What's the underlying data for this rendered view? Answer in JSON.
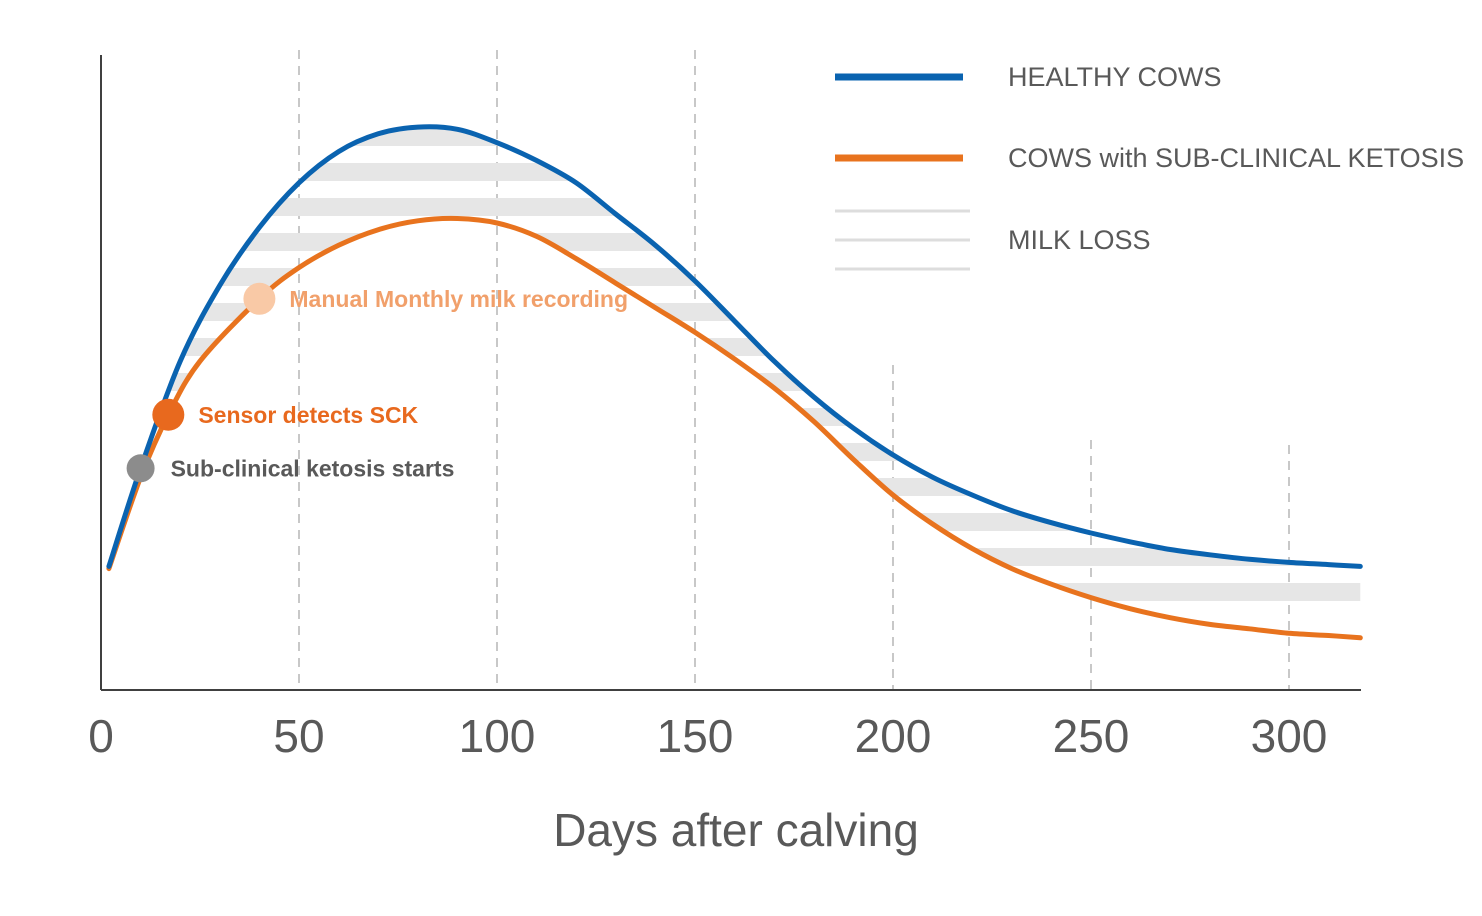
{
  "chart_data": {
    "type": "line",
    "title": "",
    "xlabel": "Days after calving",
    "ylabel": "",
    "xlim": [
      0,
      318
    ],
    "x_ticks": [
      "0",
      "50",
      "100",
      "150",
      "200",
      "250",
      "300"
    ],
    "grid": "vertical dashed at x tick positions",
    "legend_position": "top-right",
    "legend": [
      {
        "key": "healthy",
        "label": "HEALTHY COWS",
        "swatch": "line",
        "color": "#0a63b0"
      },
      {
        "key": "sck",
        "label": "COWS with SUB-CLINICAL KETOSIS",
        "swatch": "line",
        "color": "#e8731e"
      },
      {
        "key": "loss",
        "label": "MILK LOSS",
        "swatch": "stripes",
        "color": "#dddddd"
      }
    ],
    "series": [
      {
        "name": "HEALTHY COWS",
        "color": "#0a63b0",
        "x": [
          2,
          10,
          20,
          30,
          40,
          50,
          60,
          70,
          80,
          90,
          100,
          110,
          120,
          130,
          140,
          150,
          160,
          170,
          180,
          190,
          200,
          210,
          220,
          230,
          240,
          250,
          260,
          270,
          280,
          290,
          300,
          310,
          318
        ],
        "values": [
          10,
          32,
          56,
          73,
          86,
          96,
          103,
          107,
          108.5,
          108,
          105,
          101,
          96,
          89,
          82,
          74,
          65,
          56,
          48,
          41,
          35,
          30,
          26,
          22.5,
          19.8,
          17.5,
          15.5,
          13.8,
          12.6,
          11.6,
          10.9,
          10.4,
          10
        ]
      },
      {
        "name": "COWS with SUB-CLINICAL KETOSIS",
        "color": "#e8731e",
        "x": [
          2,
          10,
          17,
          25,
          40,
          50,
          60,
          70,
          80,
          90,
          100,
          110,
          120,
          130,
          140,
          150,
          160,
          170,
          180,
          190,
          200,
          210,
          220,
          230,
          240,
          250,
          260,
          270,
          280,
          290,
          300,
          310,
          318
        ],
        "values": [
          9.5,
          30,
          44,
          56,
          70,
          77,
          82,
          85.5,
          87.5,
          88,
          87,
          84,
          79,
          73.5,
          68,
          62.5,
          56.5,
          50,
          42.5,
          34,
          26,
          19.5,
          14,
          9.5,
          6,
          3,
          0.5,
          -1.5,
          -3,
          -4,
          -5,
          -5.5,
          -6
        ]
      }
    ],
    "annotations": [
      {
        "label": "Sub-clinical ketosis starts",
        "x": 10,
        "on_series": "healthy",
        "color": "#8c8c8c",
        "text_color": "#595959"
      },
      {
        "label": "Sensor detects SCK",
        "x": 17,
        "on_series": "sck",
        "color": "#e8691e",
        "text_color": "#e8691e"
      },
      {
        "label": "Manual Monthly milk recording",
        "x": 40,
        "on_series": "sck",
        "color": "#f9c9a6",
        "text_color": "#f1a06b"
      }
    ]
  }
}
